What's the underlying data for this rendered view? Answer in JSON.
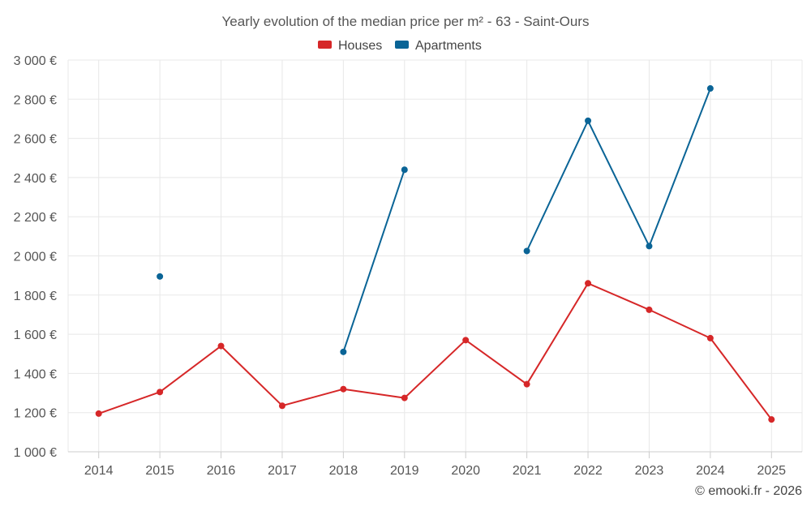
{
  "chart_data": {
    "type": "line",
    "title": "Yearly evolution of the median price per m² - 63 - Saint-Ours",
    "categories": [
      "2014",
      "2015",
      "2016",
      "2017",
      "2018",
      "2019",
      "2020",
      "2021",
      "2022",
      "2023",
      "2024",
      "2025"
    ],
    "series": [
      {
        "name": "Houses",
        "color": "#d62728",
        "values": [
          1195,
          1305,
          1540,
          1235,
          1320,
          1275,
          1570,
          1345,
          1860,
          1725,
          1580,
          1165
        ]
      },
      {
        "name": "Apartments",
        "color": "#0a6496",
        "values": [
          null,
          1895,
          null,
          null,
          1510,
          2440,
          null,
          2025,
          2690,
          2050,
          2855,
          null
        ]
      }
    ],
    "yticks": [
      "1 000 €",
      "1 200 €",
      "1 400 €",
      "1 600 €",
      "1 800 €",
      "2 000 €",
      "2 200 €",
      "2 400 €",
      "2 600 €",
      "2 800 €",
      "3 000 €"
    ],
    "ylim": [
      1000,
      3000
    ],
    "ystep": 200,
    "xlabel": "",
    "ylabel": "",
    "legend_position": "top-center",
    "grid": true
  },
  "credit": "© emooki.fr - 2026"
}
